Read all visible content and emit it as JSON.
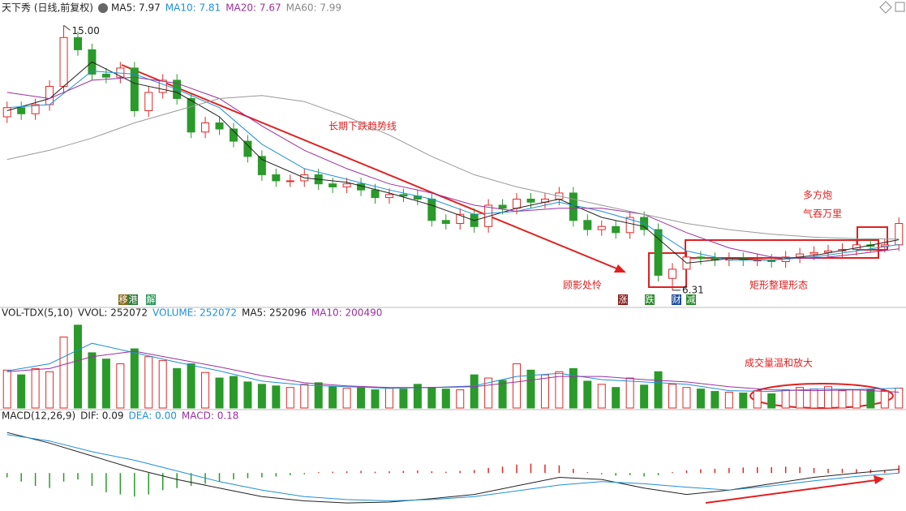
{
  "header": {
    "title": "天下秀 (日线,前复权)"
  },
  "chart_data": [
    {
      "type": "candlestick",
      "up_color": "#e02828",
      "down_color": "#2a9a2a",
      "ylim": [
        5.8,
        15.3
      ],
      "legend": [
        {
          "text": "MA5: 7.97",
          "color": "#222222"
        },
        {
          "text": "MA10: 7.81",
          "color": "#1f8fd8"
        },
        {
          "text": "MA20: 7.67",
          "color": "#9b2fa0"
        },
        {
          "text": "MA60: 7.99",
          "color": "#888888"
        }
      ],
      "open": [
        12.0,
        12.3,
        12.1,
        12.4,
        13.0,
        14.6,
        14.2,
        13.4,
        13.3,
        13.6,
        12.2,
        12.8,
        13.2,
        12.6,
        11.5,
        11.8,
        11.6,
        11.2,
        10.7,
        10.1,
        9.9,
        9.9,
        10.1,
        9.8,
        9.7,
        9.8,
        9.6,
        9.35,
        9.45,
        9.4,
        9.3,
        8.6,
        8.5,
        8.8,
        8.4,
        9.1,
        9.0,
        9.3,
        9.2,
        9.3,
        9.5,
        8.6,
        8.3,
        8.4,
        8.2,
        8.7,
        8.3,
        6.7,
        7.0,
        7.4,
        7.35,
        7.3,
        7.35,
        7.3,
        7.3,
        7.25,
        7.4,
        7.5,
        7.55,
        7.6,
        7.65,
        7.8,
        7.75,
        7.8
      ],
      "close": [
        12.3,
        12.1,
        12.4,
        13.0,
        14.6,
        14.2,
        13.4,
        13.3,
        13.6,
        12.2,
        12.8,
        13.2,
        12.6,
        11.5,
        11.8,
        11.6,
        11.2,
        10.7,
        10.1,
        9.9,
        9.9,
        10.1,
        9.8,
        9.7,
        9.8,
        9.6,
        9.35,
        9.45,
        9.4,
        9.3,
        8.6,
        8.5,
        8.8,
        8.4,
        9.1,
        9.0,
        9.3,
        9.2,
        9.3,
        9.5,
        8.6,
        8.3,
        8.4,
        8.2,
        8.7,
        8.3,
        6.8,
        7.0,
        7.4,
        7.35,
        7.3,
        7.35,
        7.3,
        7.3,
        7.25,
        7.4,
        7.5,
        7.55,
        7.6,
        7.65,
        7.8,
        7.75,
        7.8,
        8.5
      ],
      "high": [
        12.5,
        12.5,
        12.6,
        13.2,
        15.0,
        14.8,
        14.4,
        13.6,
        13.8,
        13.8,
        13.0,
        13.4,
        13.4,
        12.8,
        12.0,
        12.0,
        11.8,
        11.4,
        10.9,
        10.3,
        10.1,
        10.3,
        10.3,
        10.0,
        10.0,
        10.0,
        9.8,
        9.65,
        9.65,
        9.6,
        9.5,
        8.8,
        9.0,
        9.0,
        9.3,
        9.3,
        9.5,
        9.5,
        9.5,
        9.7,
        9.7,
        8.8,
        8.6,
        8.6,
        8.9,
        8.9,
        8.5,
        7.2,
        7.6,
        7.6,
        7.55,
        7.55,
        7.55,
        7.5,
        7.5,
        7.6,
        7.7,
        7.75,
        7.8,
        7.85,
        8.0,
        8.0,
        8.0,
        8.7
      ],
      "low": [
        11.8,
        11.9,
        11.9,
        12.2,
        12.8,
        14.0,
        13.2,
        13.1,
        13.1,
        12.0,
        12.0,
        12.6,
        12.4,
        11.3,
        11.3,
        11.4,
        11.0,
        10.5,
        9.9,
        9.7,
        9.7,
        9.7,
        9.6,
        9.5,
        9.5,
        9.4,
        9.15,
        9.15,
        9.2,
        9.1,
        8.4,
        8.3,
        8.3,
        8.2,
        8.2,
        8.8,
        8.8,
        9.0,
        9.0,
        9.1,
        8.4,
        8.1,
        8.1,
        8.0,
        8.0,
        8.1,
        6.6,
        6.31,
        6.8,
        7.15,
        7.1,
        7.1,
        7.1,
        7.1,
        7.05,
        7.05,
        7.2,
        7.3,
        7.35,
        7.4,
        7.45,
        7.55,
        7.55,
        7.6
      ],
      "series": [
        {
          "name": "MA5",
          "color": "#222222",
          "x": [
            0,
            3,
            6,
            9,
            12,
            15,
            18,
            21,
            24,
            27,
            30,
            33,
            36,
            39,
            42,
            45,
            48,
            51,
            54,
            57,
            60,
            63
          ],
          "values": [
            12.2,
            12.6,
            13.8,
            13.1,
            12.8,
            12.0,
            10.6,
            10.0,
            9.85,
            9.5,
            9.1,
            8.6,
            9.0,
            9.3,
            8.7,
            8.4,
            7.2,
            7.35,
            7.3,
            7.45,
            7.7,
            7.97
          ]
        },
        {
          "name": "MA10",
          "color": "#1f8fd8",
          "x": [
            0,
            3,
            6,
            9,
            12,
            15,
            18,
            21,
            24,
            27,
            30,
            33,
            36,
            39,
            42,
            45,
            48,
            51,
            54,
            57,
            60,
            63
          ],
          "values": [
            12.3,
            12.4,
            13.5,
            13.4,
            12.9,
            12.3,
            11.1,
            10.3,
            9.95,
            9.6,
            9.3,
            8.8,
            8.9,
            9.2,
            8.9,
            8.5,
            7.6,
            7.3,
            7.3,
            7.4,
            7.6,
            7.81
          ]
        },
        {
          "name": "MA20",
          "color": "#9b2fa0",
          "x": [
            0,
            3,
            6,
            9,
            12,
            15,
            18,
            21,
            24,
            27,
            30,
            33,
            36,
            39,
            42,
            45,
            48,
            51,
            54,
            57,
            60,
            63
          ],
          "values": [
            12.8,
            12.6,
            13.2,
            13.3,
            13.1,
            12.6,
            11.7,
            10.9,
            10.3,
            9.8,
            9.5,
            9.1,
            8.9,
            9.0,
            9.0,
            8.8,
            8.2,
            7.7,
            7.4,
            7.35,
            7.5,
            7.67
          ]
        },
        {
          "name": "MA60",
          "color": "#999999",
          "x": [
            0,
            3,
            6,
            9,
            12,
            15,
            18,
            21,
            24,
            27,
            30,
            33,
            36,
            39,
            42,
            45,
            48,
            51,
            54,
            57,
            60,
            63
          ],
          "values": [
            10.6,
            10.9,
            11.3,
            11.8,
            12.2,
            12.6,
            12.7,
            12.5,
            12.0,
            11.4,
            10.7,
            10.1,
            9.7,
            9.4,
            9.1,
            8.8,
            8.5,
            8.3,
            8.15,
            8.05,
            8.0,
            7.99
          ]
        }
      ],
      "high_label": {
        "value": 15.0,
        "label": "15.00"
      },
      "low_label": {
        "value": 6.31,
        "label": "6.31"
      },
      "annotations": [
        "长期下跌趋势线",
        "顾影处怜",
        "多方炮",
        "气吞万里",
        "矩形整理形态"
      ],
      "badges": [
        "移",
        "港",
        "解",
        "涨",
        "跌",
        "财",
        "减"
      ]
    },
    {
      "type": "volume",
      "ylim": [
        0,
        1100000
      ],
      "legend": [
        {
          "text": "VOL-TDX(5,10)",
          "color": "#222222"
        },
        {
          "text": "VVOL: 252072",
          "color": "#222222"
        },
        {
          "text": "VOLUME: 252072",
          "color": "#1f8fd8"
        },
        {
          "text": "MA5: 252096",
          "color": "#222222"
        },
        {
          "text": "MA10: 200490",
          "color": "#9b2fa0"
        }
      ],
      "values": [
        480000,
        420000,
        500000,
        460000,
        900000,
        1050000,
        700000,
        620000,
        560000,
        750000,
        650000,
        600000,
        500000,
        560000,
        450000,
        380000,
        400000,
        330000,
        300000,
        280000,
        260000,
        300000,
        320000,
        270000,
        250000,
        260000,
        230000,
        250000,
        240000,
        300000,
        260000,
        240000,
        230000,
        420000,
        380000,
        350000,
        560000,
        480000,
        420000,
        460000,
        500000,
        340000,
        300000,
        260000,
        380000,
        290000,
        460000,
        300000,
        260000,
        240000,
        210000,
        200000,
        190000,
        220000,
        180000,
        230000,
        260000,
        240000,
        270000,
        220000,
        230000,
        240000,
        220000,
        252072
      ],
      "series": [
        {
          "name": "MA5",
          "color": "#1f8fd8",
          "x": [
            0,
            3,
            6,
            9,
            12,
            15,
            18,
            21,
            24,
            27,
            30,
            33,
            36,
            39,
            42,
            45,
            48,
            51,
            54,
            57,
            60,
            63
          ],
          "values": [
            470000,
            560000,
            820000,
            700000,
            580000,
            470000,
            340000,
            290000,
            270000,
            250000,
            260000,
            280000,
            400000,
            440000,
            360000,
            330000,
            300000,
            220000,
            210000,
            240000,
            235000,
            252096
          ]
        },
        {
          "name": "MA10",
          "color": "#9b2fa0",
          "x": [
            0,
            3,
            6,
            9,
            12,
            15,
            18,
            21,
            24,
            27,
            30,
            33,
            36,
            39,
            42,
            45,
            48,
            51,
            54,
            57,
            60,
            63
          ],
          "values": [
            460000,
            500000,
            650000,
            720000,
            620000,
            520000,
            410000,
            320000,
            280000,
            260000,
            260000,
            270000,
            330000,
            400000,
            400000,
            360000,
            330000,
            270000,
            230000,
            220000,
            230000,
            200490
          ]
        }
      ],
      "annotations": [
        "成交量温和放大"
      ]
    },
    {
      "type": "macd",
      "ylim": [
        -0.85,
        1.2
      ],
      "legend": [
        {
          "text": "MACD(12,26,9)",
          "color": "#222222"
        },
        {
          "text": "DIF: 0.09",
          "color": "#222222"
        },
        {
          "text": "DEA: 0.00",
          "color": "#1f8fd8"
        },
        {
          "text": "MACD: 0.18",
          "color": "#9b2fa0"
        }
      ],
      "values": [
        -0.1,
        -0.2,
        -0.3,
        -0.35,
        -0.2,
        -0.15,
        -0.3,
        -0.45,
        -0.5,
        -0.55,
        -0.5,
        -0.4,
        -0.35,
        -0.3,
        -0.25,
        -0.2,
        -0.15,
        -0.12,
        -0.1,
        -0.08,
        -0.05,
        -0.03,
        0.02,
        0.03,
        0.04,
        0.05,
        0.03,
        0.04,
        0.05,
        0.06,
        0.04,
        0.03,
        0.05,
        0.07,
        0.12,
        0.15,
        0.2,
        0.22,
        0.2,
        0.18,
        0.1,
        0.02,
        -0.03,
        -0.06,
        -0.05,
        -0.08,
        -0.05,
        0.02,
        0.06,
        0.09,
        0.1,
        0.12,
        0.13,
        0.14,
        0.14,
        0.15,
        0.14,
        0.12,
        0.1,
        0.1,
        0.09,
        0.08,
        0.07,
        0.18
      ],
      "series": [
        {
          "name": "DIF",
          "color": "#222222",
          "x": [
            0,
            3,
            6,
            9,
            12,
            15,
            18,
            21,
            24,
            27,
            30,
            33,
            36,
            39,
            42,
            45,
            48,
            51,
            54,
            57,
            60,
            63
          ],
          "values": [
            0.95,
            0.7,
            0.4,
            0.1,
            -0.15,
            -0.35,
            -0.55,
            -0.65,
            -0.7,
            -0.68,
            -0.6,
            -0.5,
            -0.3,
            -0.1,
            -0.15,
            -0.35,
            -0.5,
            -0.4,
            -0.25,
            -0.1,
            0.0,
            0.09
          ]
        },
        {
          "name": "DEA",
          "color": "#1f8fd8",
          "x": [
            0,
            3,
            6,
            9,
            12,
            15,
            18,
            21,
            24,
            27,
            30,
            33,
            36,
            39,
            42,
            45,
            48,
            51,
            54,
            57,
            60,
            63
          ],
          "values": [
            0.9,
            0.75,
            0.5,
            0.3,
            0.05,
            -0.2,
            -0.4,
            -0.55,
            -0.62,
            -0.65,
            -0.62,
            -0.55,
            -0.42,
            -0.28,
            -0.2,
            -0.25,
            -0.33,
            -0.4,
            -0.3,
            -0.18,
            -0.08,
            0.0
          ]
        }
      ]
    }
  ]
}
